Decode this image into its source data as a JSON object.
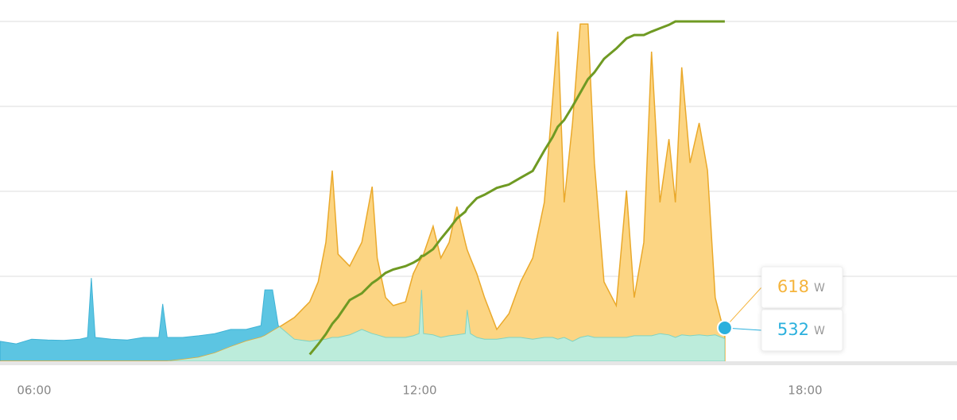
{
  "chart_data": {
    "type": "area",
    "x": [
      5.47,
      5.72,
      5.96,
      6.21,
      6.46,
      6.71,
      6.83,
      6.89,
      6.95,
      7.2,
      7.45,
      7.7,
      7.94,
      8.0,
      8.07,
      8.31,
      8.56,
      8.81,
      9.06,
      9.3,
      9.53,
      9.59,
      9.71,
      9.8,
      10.05,
      10.29,
      10.42,
      10.54,
      10.64,
      10.73,
      10.91,
      11.1,
      11.26,
      11.34,
      11.47,
      11.59,
      11.78,
      11.9,
      11.99,
      12.03,
      12.06,
      12.21,
      12.33,
      12.46,
      12.58,
      12.71,
      12.74,
      12.79,
      12.89,
      13.01,
      13.2,
      13.39,
      13.57,
      13.76,
      13.94,
      14.07,
      14.15,
      14.25,
      14.38,
      14.5,
      14.62,
      14.72,
      14.87,
      15.06,
      15.22,
      15.34,
      15.49,
      15.61,
      15.74,
      15.88,
      15.98,
      16.08,
      16.21,
      16.35,
      16.48,
      16.6,
      16.75
    ],
    "xlim": [
      5.468,
      20.364
    ],
    "xticks": [
      {
        "value": 6,
        "label": "06:00"
      },
      {
        "value": 12,
        "label": "12:00"
      },
      {
        "value": 18,
        "label": "18:00"
      }
    ],
    "ylim": [
      0,
      8000
    ],
    "grid_lines": [
      2000,
      4000,
      6000,
      8000
    ],
    "y2lim": [
      0,
      100
    ],
    "series": [
      {
        "color": "#3fb3d6",
        "fill": "#5cc5e2",
        "overlap_fill": "#bcecdb",
        "values": [
          470,
          410,
          520,
          500,
          490,
          520,
          560,
          1960,
          560,
          520,
          500,
          560,
          560,
          1350,
          560,
          560,
          600,
          650,
          750,
          750,
          840,
          1680,
          1680,
          840,
          520,
          470,
          500,
          520,
          560,
          560,
          620,
          750,
          650,
          620,
          560,
          560,
          560,
          600,
          650,
          1680,
          650,
          620,
          560,
          600,
          620,
          650,
          1210,
          650,
          560,
          520,
          520,
          560,
          560,
          520,
          560,
          560,
          520,
          560,
          470,
          560,
          600,
          560,
          560,
          560,
          560,
          600,
          600,
          600,
          650,
          620,
          560,
          620,
          600,
          620,
          600,
          620,
          532
        ]
      },
      {
        "color": "#eaa92b",
        "fill": "#fcd583",
        "values": [
          0,
          0,
          0,
          0,
          0,
          0,
          0,
          0,
          0,
          0,
          0,
          0,
          0,
          0,
          0,
          40,
          90,
          190,
          340,
          470,
          560,
          600,
          710,
          790,
          1030,
          1400,
          1870,
          2800,
          4490,
          2520,
          2240,
          2800,
          4110,
          2430,
          1500,
          1310,
          1400,
          2060,
          2340,
          2430,
          2520,
          3180,
          2430,
          2800,
          3640,
          2800,
          2620,
          2430,
          2060,
          1500,
          750,
          1120,
          1870,
          2430,
          3740,
          6170,
          7760,
          3740,
          5610,
          7940,
          7940,
          4670,
          1870,
          1310,
          4020,
          1500,
          2800,
          7290,
          3740,
          5230,
          3740,
          6920,
          4670,
          5610,
          4490,
          1500,
          618
        ]
      },
      {
        "axis": "y2",
        "color": "#6f9a23",
        "values": [
          null,
          null,
          null,
          null,
          null,
          null,
          null,
          null,
          null,
          null,
          null,
          null,
          null,
          null,
          null,
          null,
          null,
          null,
          null,
          null,
          null,
          null,
          null,
          null,
          null,
          2,
          5,
          8,
          11,
          13,
          18,
          20,
          23,
          24,
          26,
          27,
          28,
          29,
          30,
          31,
          31,
          33,
          36,
          39,
          42,
          44,
          45,
          46,
          48,
          49,
          51,
          52,
          54,
          56,
          62,
          66,
          69,
          71,
          75,
          79,
          83,
          85,
          89,
          92,
          95,
          96,
          96,
          97,
          98,
          99,
          100,
          100,
          100,
          100,
          100,
          100,
          100
        ]
      }
    ],
    "tooltip": [
      {
        "value": 618,
        "unit": "W",
        "color": "#f5b43c"
      },
      {
        "value": 532,
        "unit": "W",
        "color": "#2bb0dd"
      }
    ]
  }
}
